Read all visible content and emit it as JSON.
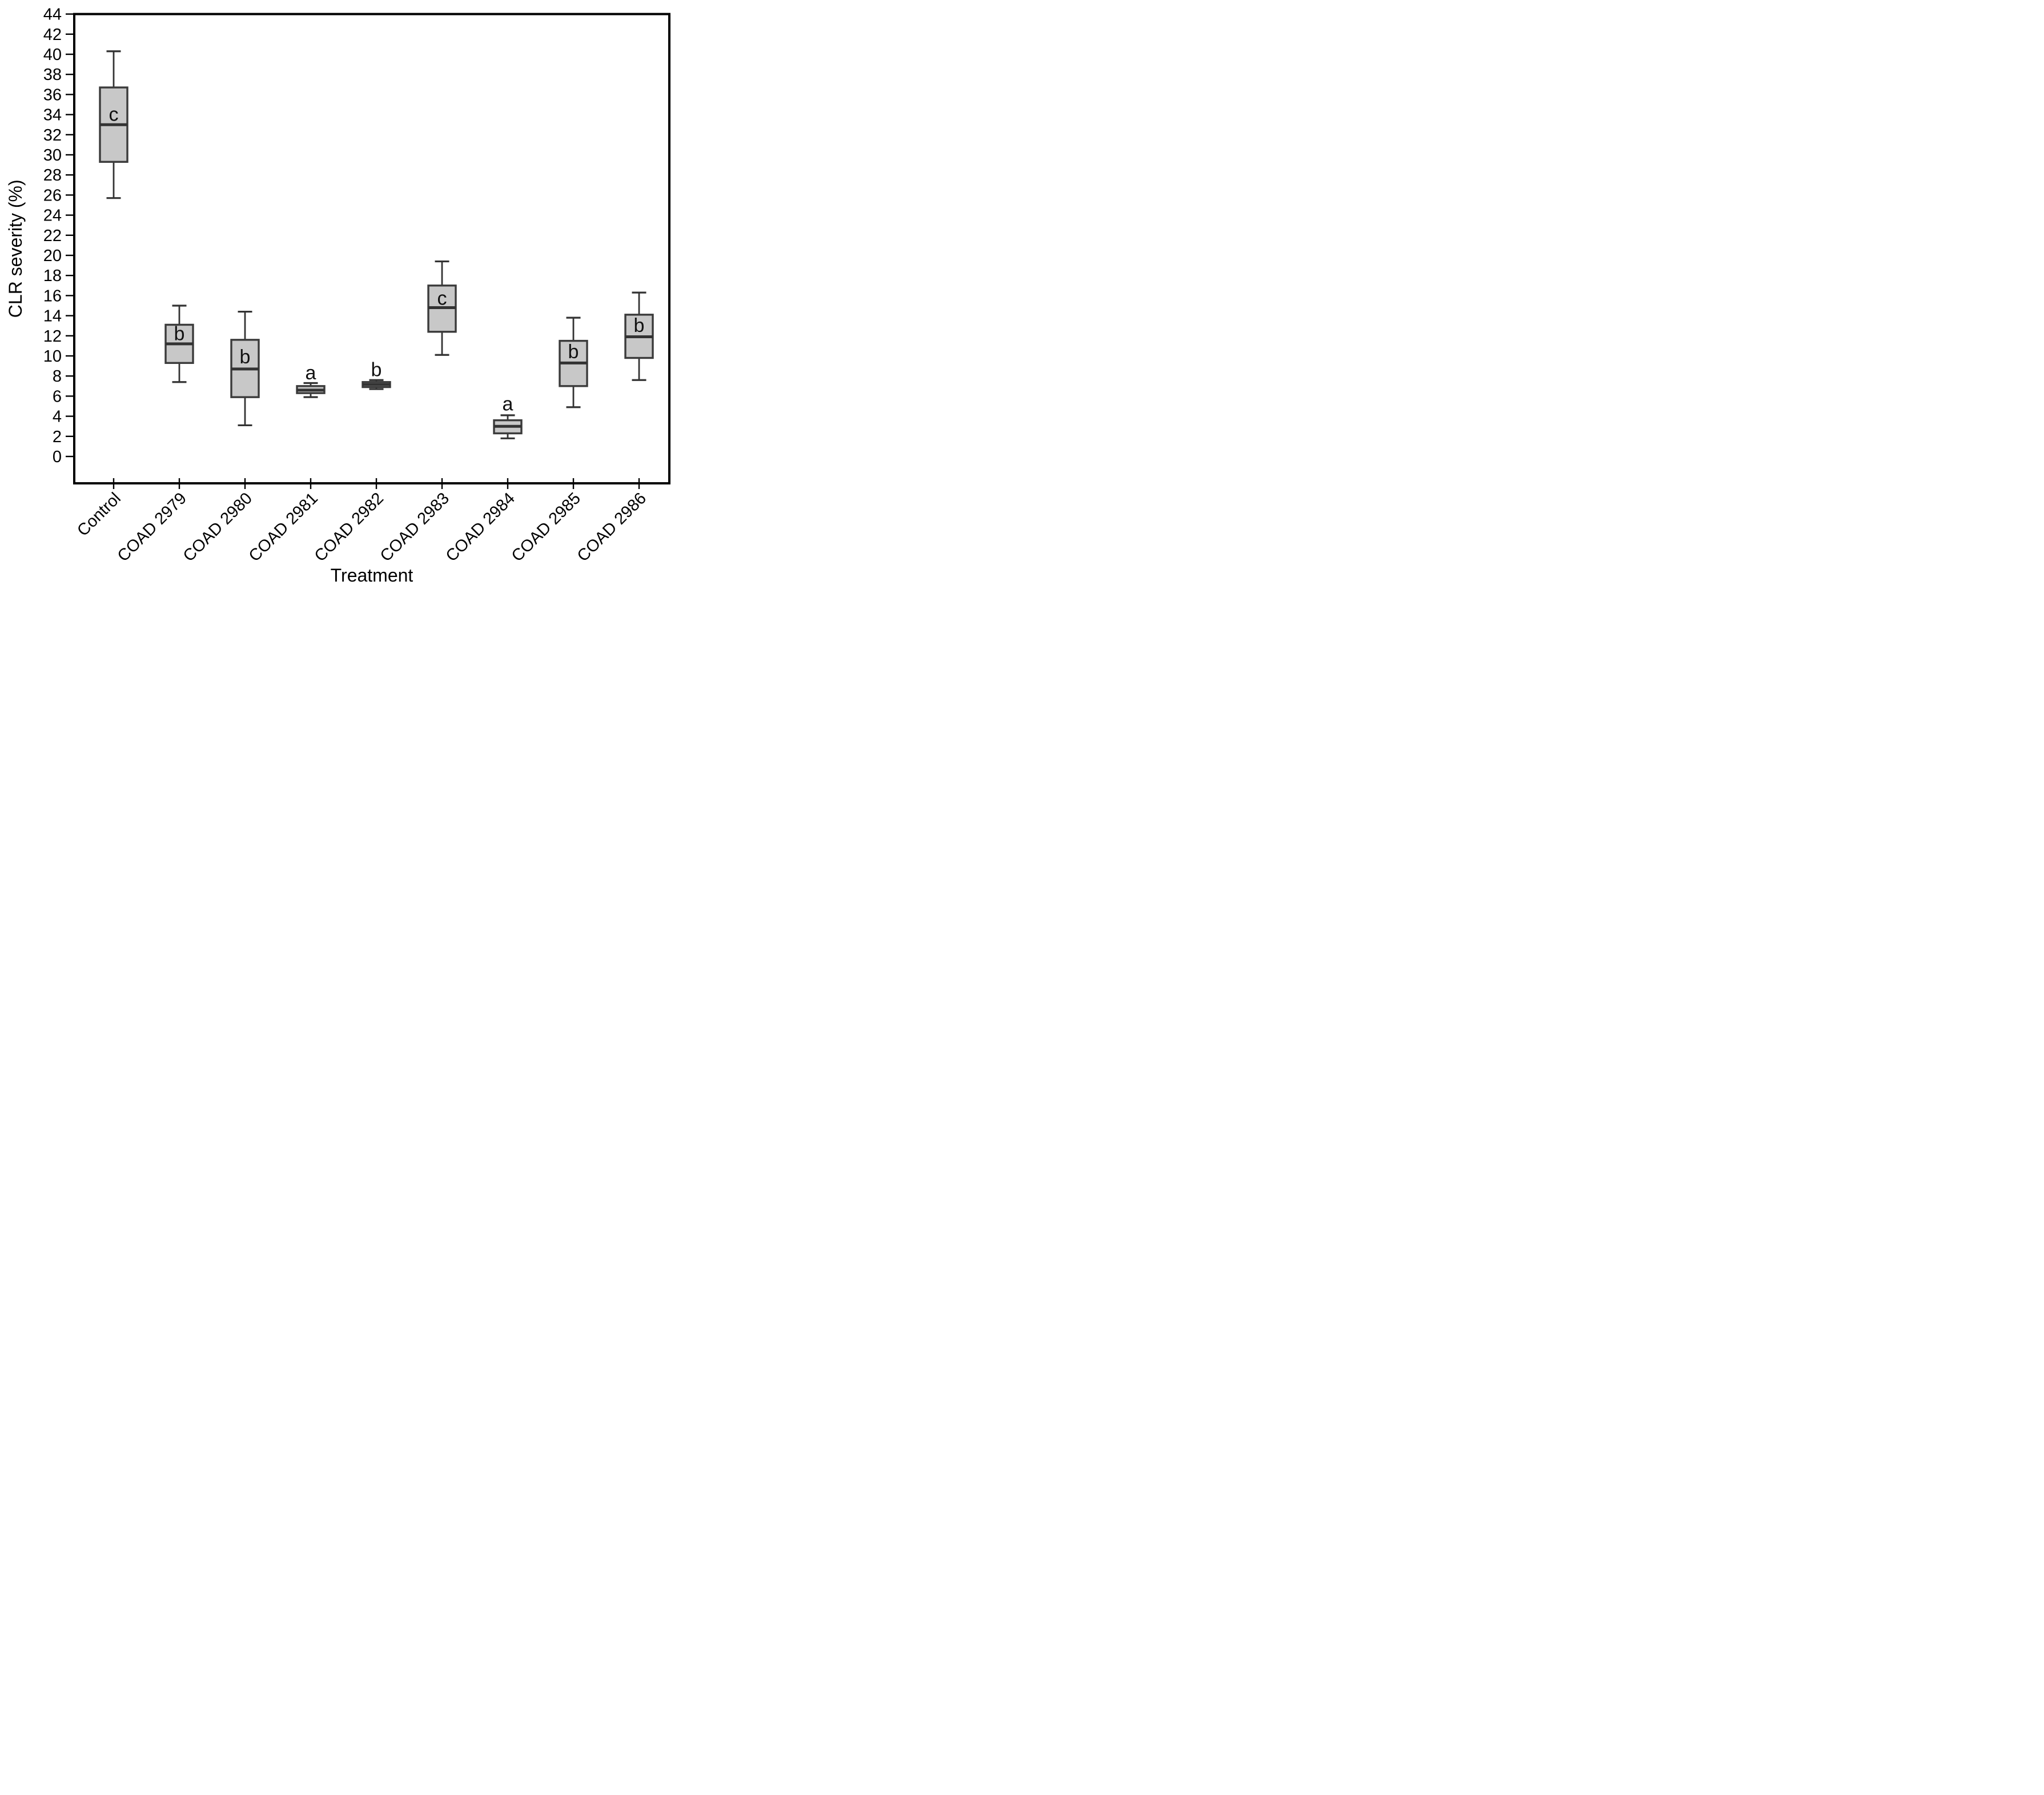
{
  "figure": {
    "background": "#ffffff"
  },
  "chart_data": {
    "type": "box",
    "title": "",
    "xlabel": "Treatment",
    "ylabel": "CLR severity (%)",
    "ylim": [
      0,
      44
    ],
    "ytick_step": 2,
    "yticks": [
      0,
      2,
      4,
      6,
      8,
      10,
      12,
      14,
      16,
      18,
      20,
      22,
      24,
      26,
      28,
      30,
      32,
      34,
      36,
      38,
      40,
      42,
      44
    ],
    "grid": false,
    "legend": null,
    "categories": [
      "Control",
      "COAD 2979",
      "COAD 2980",
      "COAD 2981",
      "COAD 2982",
      "COAD 2983",
      "COAD 2984",
      "COAD 2985",
      "COAD 2986"
    ],
    "series": [
      {
        "name": "Control",
        "whisker_low": 25.7,
        "q1": 29.3,
        "median": 33.0,
        "q3": 36.7,
        "whisker_high": 40.3,
        "letter": "c",
        "letter_y": 34.0
      },
      {
        "name": "COAD 2979",
        "whisker_low": 7.4,
        "q1": 9.3,
        "median": 11.2,
        "q3": 13.1,
        "whisker_high": 15.0,
        "letter": "b",
        "letter_y": 12.2
      },
      {
        "name": "COAD 2980",
        "whisker_low": 3.1,
        "q1": 5.9,
        "median": 8.7,
        "q3": 11.6,
        "whisker_high": 14.4,
        "letter": "b",
        "letter_y": 9.9
      },
      {
        "name": "COAD 2981",
        "whisker_low": 5.9,
        "q1": 6.3,
        "median": 6.6,
        "q3": 7.0,
        "whisker_high": 7.3,
        "letter": "a",
        "letter_y": 8.3
      },
      {
        "name": "COAD 2982",
        "whisker_low": 6.7,
        "q1": 6.9,
        "median": 7.15,
        "q3": 7.4,
        "whisker_high": 7.6,
        "letter": "b",
        "letter_y": 8.6
      },
      {
        "name": "COAD 2983",
        "whisker_low": 10.1,
        "q1": 12.4,
        "median": 14.8,
        "q3": 17.0,
        "whisker_high": 19.4,
        "letter": "c",
        "letter_y": 15.7
      },
      {
        "name": "COAD 2984",
        "whisker_low": 1.8,
        "q1": 2.3,
        "median": 3.0,
        "q3": 3.6,
        "whisker_high": 4.1,
        "letter": "a",
        "letter_y": 5.2
      },
      {
        "name": "COAD 2985",
        "whisker_low": 4.9,
        "q1": 7.0,
        "median": 9.3,
        "q3": 11.5,
        "whisker_high": 13.8,
        "letter": "b",
        "letter_y": 10.4
      },
      {
        "name": "COAD 2986",
        "whisker_low": 7.6,
        "q1": 9.8,
        "median": 11.9,
        "q3": 14.1,
        "whisker_high": 16.3,
        "letter": "b",
        "letter_y": 13.0
      }
    ],
    "colors": {
      "box_fill": "#c8c8c8",
      "box_border": "#3b3b3b",
      "median": "#333333",
      "whisker": "#333333",
      "axis": "#000000",
      "text": "#000000"
    }
  }
}
